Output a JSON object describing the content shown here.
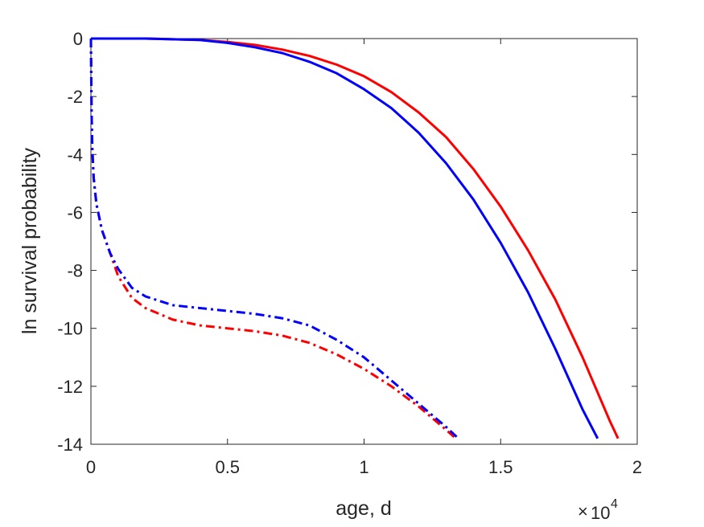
{
  "chart_data": {
    "type": "line",
    "xlabel": "age, d",
    "ylabel": "ln survival probability",
    "x_multiplier": {
      "base": "10",
      "exponent": "4"
    },
    "xlim": [
      0,
      20000
    ],
    "ylim": [
      -14,
      0
    ],
    "xticks": [
      0,
      5000,
      10000,
      15000,
      20000
    ],
    "xtick_labels": [
      "0",
      "0.5",
      "1",
      "1.5",
      "2"
    ],
    "yticks": [
      0,
      -2,
      -4,
      -6,
      -8,
      -10,
      -12,
      -14
    ],
    "ytick_labels": [
      "0",
      "-2",
      "-4",
      "-6",
      "-8",
      "-10",
      "-12",
      "-14"
    ],
    "grid": false,
    "series": [
      {
        "color": "#ff0000",
        "style": "solid",
        "x": [
          0,
          2000,
          4000,
          5000,
          6000,
          7000,
          8000,
          9000,
          10000,
          11000,
          12000,
          13000,
          14000,
          15000,
          16000,
          17000,
          18000,
          19000,
          19300
        ],
        "y": [
          0,
          0,
          -0.05,
          -0.12,
          -0.22,
          -0.38,
          -0.6,
          -0.9,
          -1.3,
          -1.85,
          -2.55,
          -3.4,
          -4.5,
          -5.8,
          -7.3,
          -9.0,
          -11.0,
          -13.2,
          -13.8
        ]
      },
      {
        "color": "#0000ff",
        "style": "solid",
        "x": [
          0,
          2000,
          4000,
          5000,
          6000,
          7000,
          8000,
          9000,
          10000,
          11000,
          12000,
          13000,
          14000,
          15000,
          16000,
          17000,
          18000,
          18550
        ],
        "y": [
          0,
          0,
          -0.05,
          -0.15,
          -0.3,
          -0.5,
          -0.8,
          -1.2,
          -1.75,
          -2.4,
          -3.25,
          -4.3,
          -5.55,
          -7.05,
          -8.75,
          -10.7,
          -12.8,
          -13.8
        ]
      },
      {
        "color": "#ff0000",
        "style": "dashdot",
        "x": [
          0,
          25,
          50,
          100,
          200,
          400,
          700,
          1000,
          1500,
          2000,
          3000,
          4000,
          5000,
          6000,
          7000,
          8000,
          9000,
          10000,
          11000,
          12000,
          13000,
          13300
        ],
        "y": [
          0,
          -2.5,
          -3.8,
          -4.8,
          -5.7,
          -6.6,
          -7.4,
          -8.2,
          -8.95,
          -9.3,
          -9.7,
          -9.9,
          -10.0,
          -10.1,
          -10.25,
          -10.5,
          -10.9,
          -11.4,
          -12.0,
          -12.7,
          -13.5,
          -13.75
        ]
      },
      {
        "color": "#0000ff",
        "style": "dashdot",
        "x": [
          0,
          25,
          50,
          100,
          200,
          400,
          700,
          1000,
          1500,
          2000,
          3000,
          4000,
          5000,
          6000,
          7000,
          8000,
          9000,
          10000,
          11000,
          12000,
          13000,
          13400
        ],
        "y": [
          0,
          -2.5,
          -3.8,
          -4.8,
          -5.7,
          -6.6,
          -7.4,
          -7.95,
          -8.6,
          -8.9,
          -9.2,
          -9.3,
          -9.4,
          -9.5,
          -9.65,
          -9.9,
          -10.4,
          -11.0,
          -11.8,
          -12.6,
          -13.4,
          -13.75
        ]
      }
    ]
  }
}
